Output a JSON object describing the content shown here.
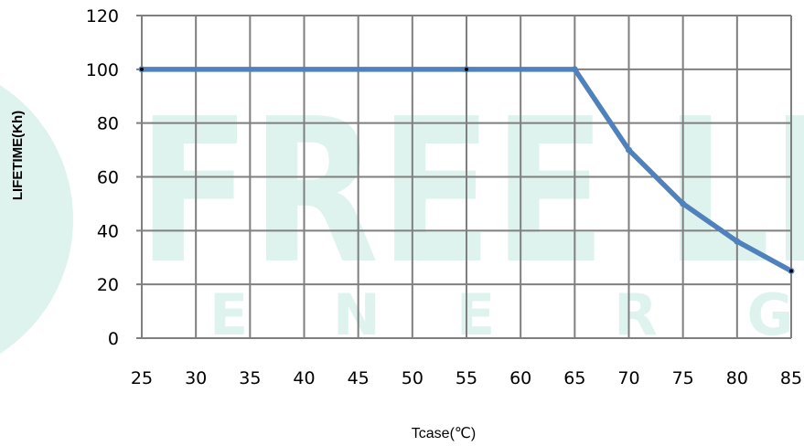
{
  "watermark": {
    "brand": "FREE LI",
    "tagline_letters": [
      "E",
      "N",
      "E",
      "R",
      "G"
    ],
    "color": "#dff3ee"
  },
  "chart_data": {
    "type": "line",
    "xlabel": "Tcase(℃)",
    "ylabel": "LIFETIME(Kh)",
    "xlim": [
      25,
      85
    ],
    "ylim": [
      0,
      120
    ],
    "x_ticks": [
      25,
      30,
      35,
      40,
      45,
      50,
      55,
      60,
      65,
      70,
      75,
      80,
      85
    ],
    "y_ticks": [
      0,
      20,
      40,
      60,
      80,
      100,
      120
    ],
    "grid": true,
    "legend": "none",
    "series": [
      {
        "color": "#4f81bd",
        "x": [
          25,
          55,
          65,
          70,
          75,
          80,
          85
        ],
        "y": [
          100,
          100,
          100,
          70,
          50,
          36,
          25
        ]
      }
    ],
    "grid_color": "#7f7f7f",
    "marker_color": "#000000"
  }
}
